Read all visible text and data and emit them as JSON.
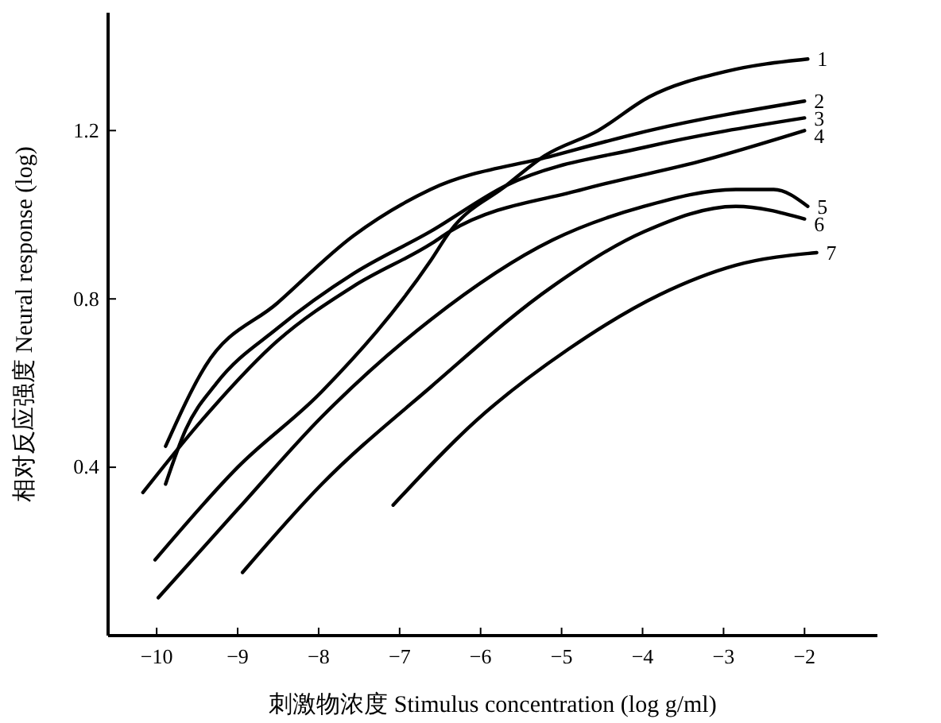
{
  "chart_data": {
    "type": "line",
    "xlabel": "刺激物浓度 Stimulus concentration (log g/ml)",
    "ylabel": "相对反应强度 Neural response (log)",
    "xlim": [
      -10.6,
      -1.1
    ],
    "ylim": [
      0,
      1.48
    ],
    "xticks": [
      {
        "value": -10,
        "label": "−10"
      },
      {
        "value": -9,
        "label": "−9"
      },
      {
        "value": -8,
        "label": "−8"
      },
      {
        "value": -7,
        "label": "−7"
      },
      {
        "value": -6,
        "label": "−6"
      },
      {
        "value": -5,
        "label": "−5"
      },
      {
        "value": -4,
        "label": "−4"
      },
      {
        "value": -3,
        "label": "−3"
      },
      {
        "value": -2,
        "label": "−2"
      }
    ],
    "yticks": [
      0.4,
      0.8,
      1.2
    ],
    "grid": false,
    "legend": false,
    "marker": "none",
    "line_style": "solid",
    "series": [
      {
        "name": "1",
        "color": "#000000",
        "x": [
          -10.02,
          -9,
          -7.96,
          -6.62,
          -6.38,
          -5.68,
          -5.21,
          -4.55,
          -3.92,
          -2.98,
          -1.96
        ],
        "values": [
          0.18,
          0.4,
          0.58,
          0.89,
          0.96,
          1.07,
          1.14,
          1.2,
          1.28,
          1.34,
          1.37
        ]
      },
      {
        "name": "2",
        "color": "#000000",
        "x": [
          -9.89,
          -9.4,
          -8.51,
          -7.57,
          -6.62,
          -5.11,
          -3.92,
          -2
        ],
        "values": [
          0.45,
          0.64,
          0.79,
          0.95,
          1.06,
          1.14,
          1.2,
          1.27
        ]
      },
      {
        "name": "3",
        "color": "#000000",
        "x": [
          -9.89,
          -9.64,
          -9.26,
          -8.51,
          -7.57,
          -6.62,
          -5.68,
          -3.98,
          -2
        ],
        "values": [
          0.36,
          0.49,
          0.6,
          0.73,
          0.86,
          0.96,
          1.07,
          1.16,
          1.23
        ]
      },
      {
        "name": "4",
        "color": "#000000",
        "x": [
          -10.17,
          -9.45,
          -8.51,
          -7.57,
          -6.62,
          -6.38,
          -4.74,
          -3.23,
          -2
        ],
        "values": [
          0.34,
          0.51,
          0.7,
          0.83,
          0.93,
          0.96,
          1.06,
          1.13,
          1.2
        ]
      },
      {
        "name": "5",
        "color": "#000000",
        "x": [
          -9.98,
          -9,
          -7.96,
          -6.62,
          -5.11,
          -3.98,
          -2.85,
          -2.38,
          -1.96
        ],
        "values": [
          0.09,
          0.3,
          0.52,
          0.75,
          0.94,
          1.02,
          1.06,
          1.06,
          1.02
        ]
      },
      {
        "name": "6",
        "color": "#000000",
        "x": [
          -8.94,
          -7.96,
          -6.62,
          -5.11,
          -3.98,
          -2.85,
          -2
        ],
        "values": [
          0.15,
          0.36,
          0.59,
          0.83,
          0.96,
          1.02,
          0.99
        ]
      },
      {
        "name": "7",
        "color": "#000000",
        "x": [
          -7.08,
          -6.06,
          -4.92,
          -3.79,
          -2.85,
          -1.85
        ],
        "values": [
          0.31,
          0.51,
          0.68,
          0.81,
          0.88,
          0.91
        ]
      }
    ]
  }
}
